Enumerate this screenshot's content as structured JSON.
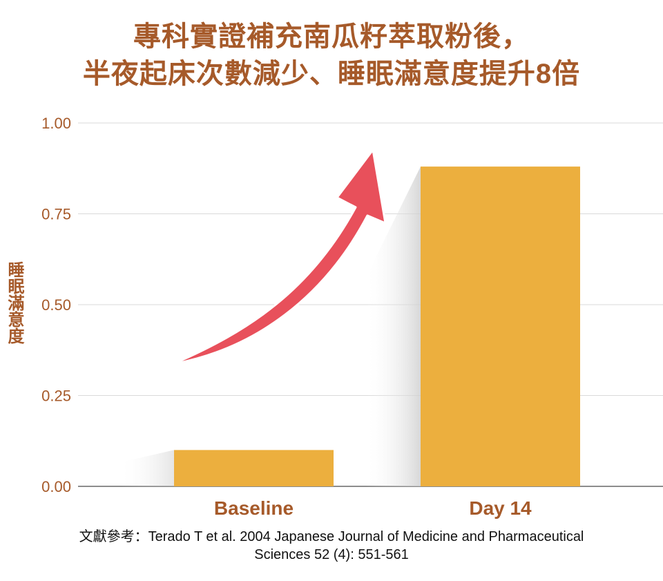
{
  "title": {
    "line1": "專科實證補充南瓜籽萃取粉後，",
    "line2": "半夜起床次數減少、睡眠滿意度提升8倍"
  },
  "reference": {
    "line1": "文獻參考：Terado T et al. 2004 Japanese Journal of Medicine and Pharmaceutical",
    "line2": "Sciences 52 (4): 551-561"
  },
  "chart_data": {
    "type": "bar",
    "title": "專科實證補充南瓜籽萃取粉後，半夜起床次數減少、睡眠滿意度提升8倍",
    "xlabel": "",
    "ylabel": "睡眠滿意度",
    "categories": [
      "Baseline",
      "Day 14"
    ],
    "values": [
      0.1,
      0.88
    ],
    "ylim": [
      0,
      1.0
    ],
    "yticks": [
      "0.00",
      "0.25",
      "0.50",
      "0.75",
      "1.00"
    ],
    "grid": true,
    "annotation": "upward-arrow",
    "colors": {
      "bar": "#ecaf3e",
      "arrow": "#e8505b",
      "text": "#a65a2a",
      "grid": "#d9d9d9",
      "axis": "#8c8c8c"
    }
  }
}
